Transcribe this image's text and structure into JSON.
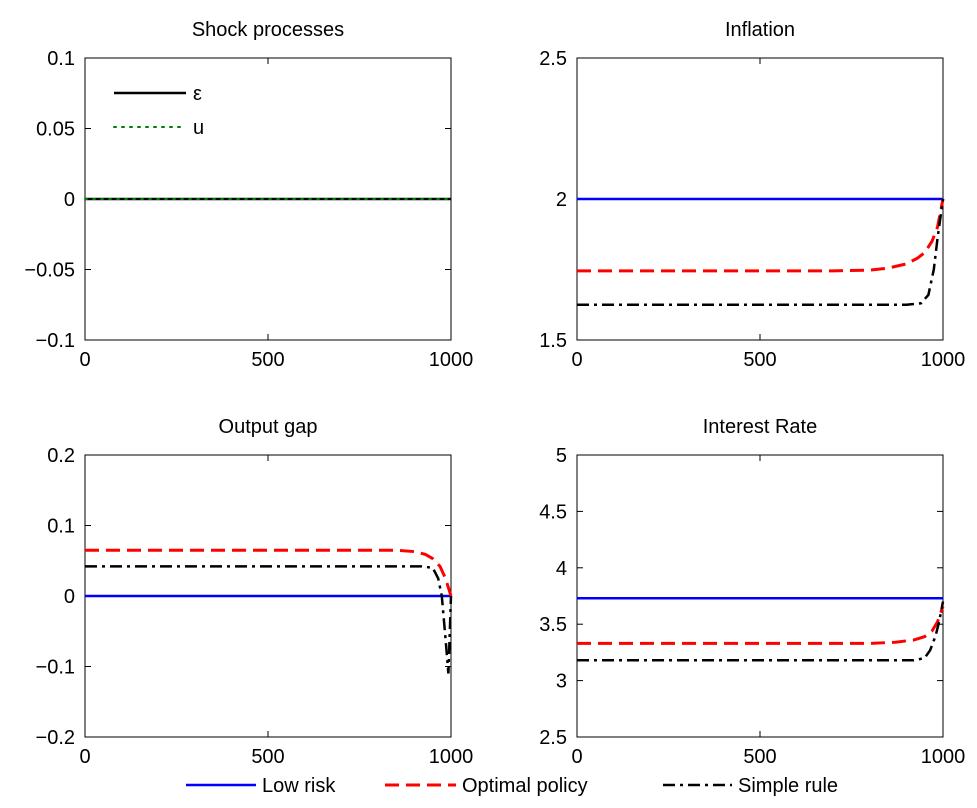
{
  "chart_data": [
    {
      "type": "line",
      "title": "Shock processes",
      "xlim": [
        0,
        1000
      ],
      "ylim": [
        -0.1,
        0.1
      ],
      "xticks": [
        "0",
        "500",
        "1000"
      ],
      "yticks": [
        "−0.1",
        "−0.05",
        "0",
        "0.05",
        "0.1"
      ],
      "legend": {
        "position": "top-left",
        "entries": [
          "ε",
          "u"
        ]
      },
      "series": [
        {
          "name": "ε",
          "color": "#000000",
          "style": "solid",
          "x": [
            0,
            1000
          ],
          "y": [
            0,
            0
          ]
        },
        {
          "name": "u",
          "color": "#008000",
          "style": "dotted",
          "x": [
            0,
            1000
          ],
          "y": [
            0,
            0
          ]
        }
      ]
    },
    {
      "type": "line",
      "title": "Inflation",
      "xlim": [
        0,
        1000
      ],
      "ylim": [
        1.5,
        2.5
      ],
      "xticks": [
        "0",
        "500",
        "1000"
      ],
      "yticks": [
        "1.5",
        "2",
        "2.5"
      ],
      "series": [
        {
          "name": "Low risk",
          "color": "#0000ff",
          "style": "solid",
          "x": [
            0,
            1000
          ],
          "y": [
            2.0,
            2.0
          ]
        },
        {
          "name": "Optimal policy",
          "color": "#ff0000",
          "style": "dashed",
          "x": [
            0,
            700,
            800,
            850,
            900,
            930,
            950,
            970,
            985,
            1000
          ],
          "y": [
            1.745,
            1.745,
            1.748,
            1.755,
            1.77,
            1.79,
            1.81,
            1.85,
            1.9,
            2.0
          ]
        },
        {
          "name": "Simple rule",
          "color": "#000000",
          "style": "dashdot",
          "x": [
            0,
            900,
            940,
            960,
            975,
            985,
            1000
          ],
          "y": [
            1.625,
            1.625,
            1.63,
            1.66,
            1.75,
            1.86,
            2.0
          ]
        }
      ]
    },
    {
      "type": "line",
      "title": "Output gap",
      "xlim": [
        0,
        1000
      ],
      "ylim": [
        -0.2,
        0.2
      ],
      "xticks": [
        "0",
        "500",
        "1000"
      ],
      "yticks": [
        "−0.2",
        "−0.1",
        "0",
        "0.1",
        "0.2"
      ],
      "series": [
        {
          "name": "Low risk",
          "color": "#0000ff",
          "style": "solid",
          "x": [
            0,
            1000
          ],
          "y": [
            0,
            0
          ]
        },
        {
          "name": "Optimal policy",
          "color": "#ff0000",
          "style": "dashed",
          "x": [
            0,
            850,
            900,
            930,
            950,
            970,
            985,
            1000
          ],
          "y": [
            0.065,
            0.065,
            0.063,
            0.059,
            0.053,
            0.042,
            0.025,
            0.0
          ]
        },
        {
          "name": "Simple rule",
          "color": "#000000",
          "style": "dashdot",
          "x": [
            0,
            920,
            950,
            965,
            975,
            985,
            993,
            1000
          ],
          "y": [
            0.042,
            0.042,
            0.04,
            0.025,
            0.0,
            -0.06,
            -0.11,
            0.0
          ]
        }
      ]
    },
    {
      "type": "line",
      "title": "Interest Rate",
      "xlim": [
        0,
        1000
      ],
      "ylim": [
        2.5,
        5
      ],
      "xticks": [
        "0",
        "500",
        "1000"
      ],
      "yticks": [
        "2.5",
        "3",
        "3.5",
        "4",
        "4.5",
        "5"
      ],
      "series": [
        {
          "name": "Low risk",
          "color": "#0000ff",
          "style": "solid",
          "x": [
            0,
            1000
          ],
          "y": [
            3.73,
            3.73
          ]
        },
        {
          "name": "Optimal policy",
          "color": "#ff0000",
          "style": "dashed",
          "x": [
            0,
            800,
            870,
            920,
            950,
            970,
            985,
            1000
          ],
          "y": [
            3.33,
            3.33,
            3.34,
            3.36,
            3.39,
            3.44,
            3.52,
            3.66
          ]
        },
        {
          "name": "Simple rule",
          "color": "#000000",
          "style": "dashdot",
          "x": [
            0,
            920,
            950,
            965,
            980,
            990,
            1000
          ],
          "y": [
            3.18,
            3.18,
            3.2,
            3.27,
            3.4,
            3.53,
            3.7
          ]
        }
      ]
    }
  ],
  "legend": {
    "position": "bottom-center",
    "entries": [
      {
        "label": "Low risk",
        "color": "#0000ff",
        "style": "solid"
      },
      {
        "label": "Optimal policy",
        "color": "#ff0000",
        "style": "dashed"
      },
      {
        "label": "Simple rule",
        "color": "#000000",
        "style": "dashdot"
      }
    ]
  }
}
